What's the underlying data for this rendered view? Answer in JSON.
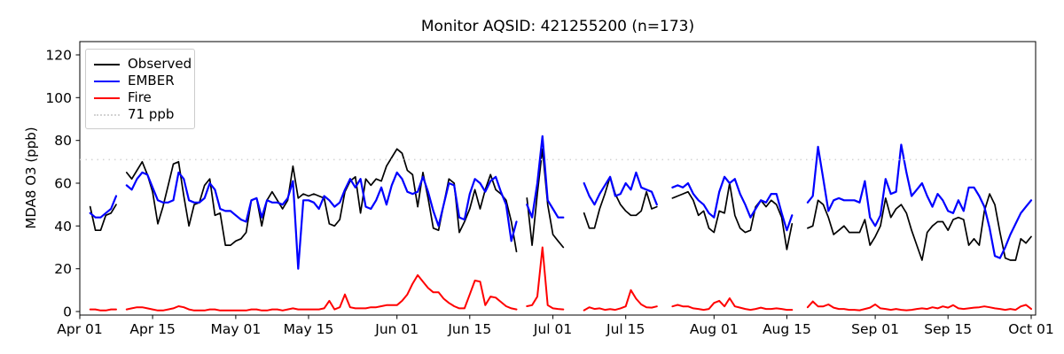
{
  "chart_data": {
    "type": "line",
    "title": "Monitor AQSID: 421255200 (n=173)",
    "ylabel": "MDA8 O3 (ppb)",
    "xlabel": "",
    "grid": false,
    "ylim": [
      0,
      126
    ],
    "y_ticks": [
      0,
      20,
      40,
      60,
      80,
      100,
      120
    ],
    "x_range_days": 183,
    "x_ticks": [
      {
        "day": 0,
        "label": "Apr 01"
      },
      {
        "day": 14,
        "label": "Apr 15"
      },
      {
        "day": 30,
        "label": "May 01"
      },
      {
        "day": 44,
        "label": "May 15"
      },
      {
        "day": 61,
        "label": "Jun 01"
      },
      {
        "day": 75,
        "label": "Jun 15"
      },
      {
        "day": 91,
        "label": "Jul 01"
      },
      {
        "day": 105,
        "label": "Jul 15"
      },
      {
        "day": 122,
        "label": "Aug 01"
      },
      {
        "day": 136,
        "label": "Aug 15"
      },
      {
        "day": 153,
        "label": "Sep 01"
      },
      {
        "day": 167,
        "label": "Sep 15"
      },
      {
        "day": 183,
        "label": "Oct 01"
      }
    ],
    "threshold": {
      "value": 71,
      "label": "71 ppb",
      "color": "#d3d3d3",
      "style": "dotted"
    },
    "legend": {
      "position": "upper left",
      "items": [
        {
          "label": "Observed",
          "color": "#000000",
          "style": "solid"
        },
        {
          "label": "EMBER",
          "color": "#0000ff",
          "style": "solid"
        },
        {
          "label": "Fire",
          "color": "#ff0000",
          "style": "solid"
        },
        {
          "label": "71 ppb",
          "color": "#d3d3d3",
          "style": "dotted"
        }
      ]
    },
    "series": [
      {
        "name": "Observed",
        "color": "#000000",
        "width": 1.7,
        "values": [
          null,
          null,
          49,
          38,
          38,
          45,
          46,
          50,
          null,
          65,
          62,
          66,
          70,
          64,
          56,
          41,
          49,
          59,
          69,
          70,
          54,
          40,
          50,
          51,
          59,
          62,
          45,
          46,
          31,
          31,
          33,
          34,
          37,
          52,
          53,
          40,
          52,
          56,
          52,
          48,
          52,
          68,
          53,
          55,
          54,
          55,
          54,
          53,
          41,
          40,
          43,
          56,
          61,
          63,
          46,
          62,
          59,
          62,
          61,
          68,
          72,
          76,
          74,
          66,
          64,
          49,
          65,
          53,
          39,
          38,
          50,
          62,
          60,
          37,
          42,
          48,
          57,
          48,
          57,
          64,
          57,
          55,
          52,
          42,
          28,
          null,
          53,
          31,
          55,
          76,
          50,
          36,
          33,
          30,
          null,
          null,
          null,
          46,
          39,
          39,
          48,
          55,
          63,
          55,
          50,
          47,
          45,
          45,
          47,
          56,
          48,
          49,
          null,
          null,
          53,
          54,
          55,
          56,
          52,
          45,
          47,
          39,
          37,
          47,
          46,
          60,
          45,
          39,
          37,
          38,
          49,
          52,
          49,
          52,
          50,
          44,
          29,
          41,
          null,
          null,
          39,
          40,
          52,
          50,
          44,
          36,
          38,
          40,
          37,
          37,
          37,
          43,
          31,
          35,
          40,
          53,
          44,
          48,
          50,
          46,
          38,
          31,
          24,
          37,
          40,
          42,
          42,
          38,
          43,
          44,
          43,
          31,
          34,
          31,
          47,
          55,
          50,
          37,
          25,
          24,
          24,
          34,
          32,
          35
        ]
      },
      {
        "name": "EMBER",
        "color": "#0000ff",
        "width": 2.2,
        "values": [
          null,
          null,
          46,
          44,
          44,
          46,
          48,
          54,
          null,
          59,
          57,
          62,
          65,
          64,
          58,
          52,
          51,
          51,
          52,
          65,
          62,
          52,
          51,
          51,
          53,
          60,
          57,
          48,
          47,
          47,
          45,
          43,
          42,
          52,
          53,
          44,
          52,
          51,
          51,
          50,
          53,
          61,
          20,
          52,
          52,
          51,
          48,
          54,
          52,
          49,
          51,
          57,
          62,
          58,
          62,
          49,
          48,
          52,
          58,
          50,
          59,
          65,
          62,
          56,
          55,
          56,
          63,
          56,
          47,
          40,
          50,
          60,
          59,
          44,
          43,
          55,
          62,
          60,
          56,
          61,
          63,
          56,
          50,
          33,
          42,
          null,
          50,
          44,
          60,
          82,
          52,
          48,
          44,
          44,
          null,
          null,
          null,
          60,
          54,
          50,
          55,
          59,
          63,
          54,
          55,
          60,
          57,
          65,
          58,
          57,
          56,
          50,
          null,
          null,
          58,
          59,
          58,
          60,
          55,
          52,
          50,
          46,
          44,
          56,
          63,
          60,
          62,
          55,
          50,
          44,
          48,
          52,
          51,
          55,
          55,
          46,
          38,
          45,
          null,
          null,
          51,
          54,
          77,
          62,
          47,
          52,
          53,
          52,
          52,
          52,
          51,
          61,
          44,
          40,
          45,
          62,
          55,
          56,
          78,
          65,
          54,
          57,
          60,
          54,
          49,
          55,
          52,
          47,
          46,
          52,
          47,
          58,
          58,
          54,
          49,
          39,
          26,
          25,
          30,
          36,
          41,
          46,
          49,
          52
        ]
      },
      {
        "name": "Fire",
        "color": "#ff0000",
        "width": 2.0,
        "values": [
          null,
          null,
          1,
          1,
          0.5,
          0.5,
          1,
          1,
          null,
          1,
          1.5,
          2,
          2,
          1.5,
          1,
          0.5,
          0.5,
          1,
          1.5,
          2.5,
          2,
          1,
          0.5,
          0.5,
          0.5,
          1,
          1,
          0.5,
          0.5,
          0.5,
          0.5,
          0.5,
          0.5,
          1,
          1,
          0.5,
          0.5,
          1,
          1,
          0.5,
          1,
          1.5,
          1,
          1,
          1,
          1,
          1,
          1.5,
          5,
          1,
          2,
          8,
          2,
          1.5,
          1.5,
          1.5,
          2,
          2,
          2.5,
          3,
          3,
          3,
          5,
          8,
          13,
          17,
          14,
          11,
          9,
          9,
          6,
          4,
          2.5,
          1.5,
          1.5,
          8,
          14.5,
          14,
          3,
          7,
          6.5,
          4.5,
          2.5,
          1.5,
          1,
          null,
          2.5,
          3,
          7,
          30,
          3,
          1.5,
          1.2,
          1,
          null,
          null,
          null,
          0.6,
          2,
          1.2,
          1.5,
          0.8,
          1.1,
          0.8,
          1.5,
          2.4,
          10,
          6,
          3.3,
          2,
          1.8,
          2.4,
          null,
          null,
          2.4,
          3.1,
          2.4,
          2.4,
          1.5,
          1.2,
          0.8,
          1.2,
          4,
          5,
          2.4,
          6.2,
          2.4,
          1.8,
          1.2,
          0.8,
          1.2,
          1.8,
          1.2,
          1.2,
          1.5,
          1.2,
          0.8,
          0.8,
          null,
          null,
          2,
          4.7,
          2.4,
          2.4,
          3.3,
          1.8,
          1.2,
          1.2,
          0.8,
          0.8,
          0.6,
          1.2,
          1.8,
          3.3,
          1.5,
          1.2,
          0.8,
          1.2,
          0.8,
          0.6,
          0.8,
          1.2,
          1.5,
          1.2,
          2,
          1.5,
          2.4,
          1.8,
          3,
          1.5,
          1.2,
          1.5,
          1.8,
          2,
          2.4,
          2,
          1.5,
          1.2,
          0.8,
          1.2,
          0.8,
          2.4,
          3.1,
          1.2
        ]
      }
    ]
  }
}
